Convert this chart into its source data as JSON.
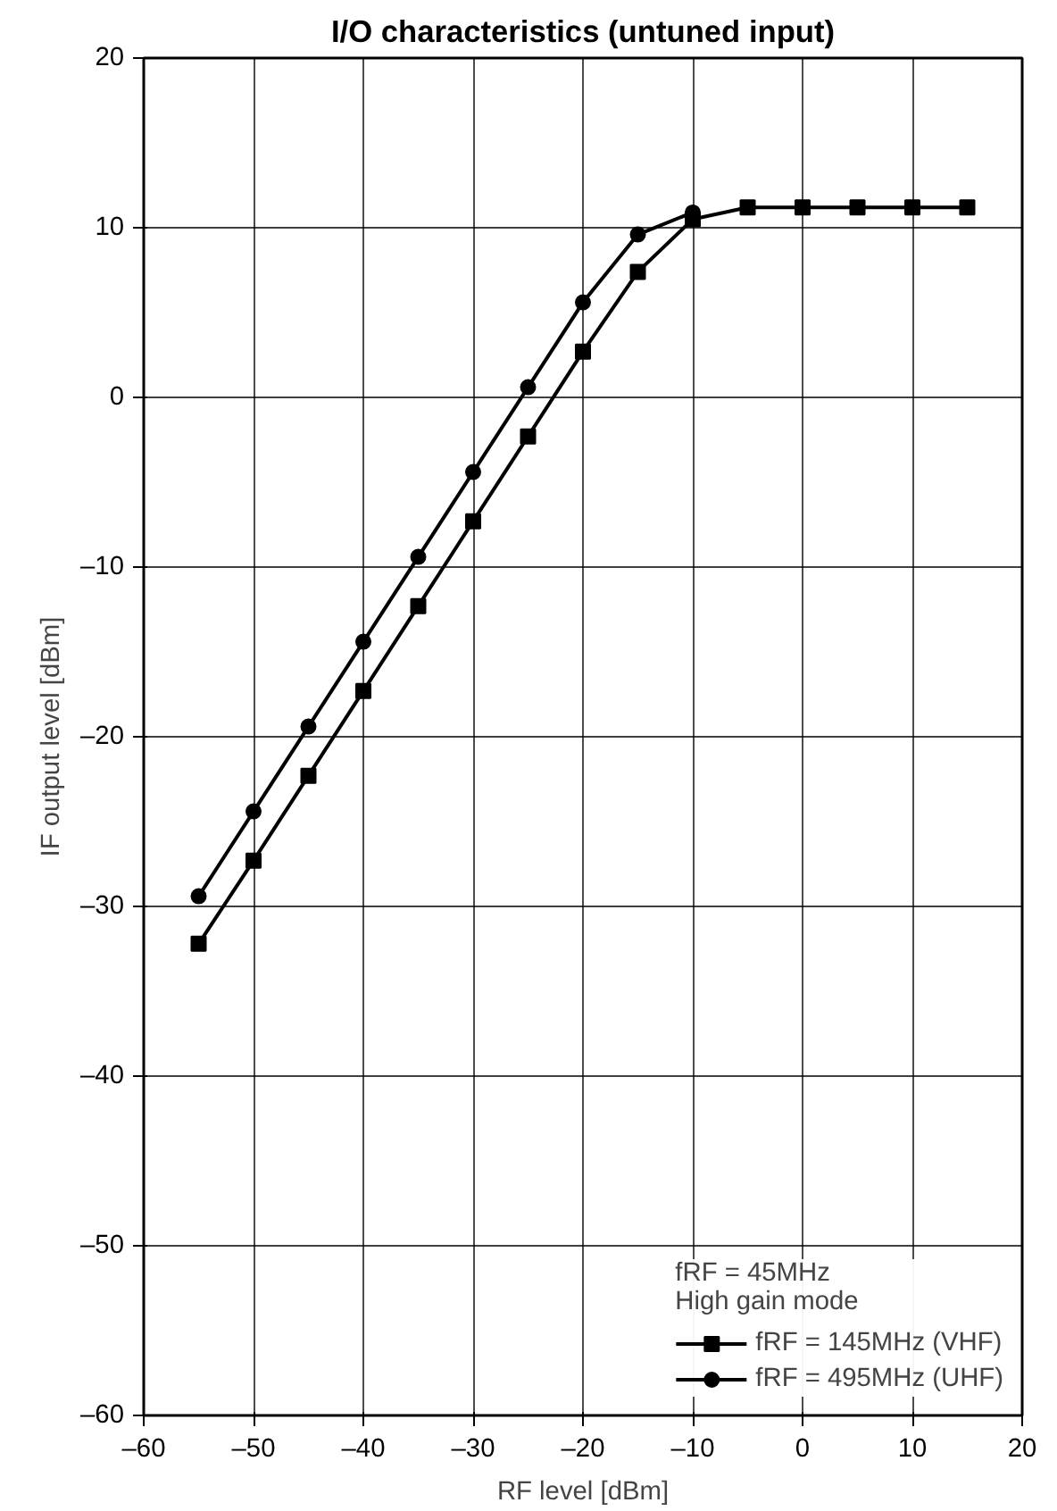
{
  "chart_data": {
    "type": "line",
    "title": "I/O characteristics (untuned input)",
    "xlabel": "RF level [dBm]",
    "ylabel": "IF output level [dBm]",
    "xlim": [
      -60,
      20
    ],
    "ylim": [
      -60,
      20
    ],
    "xticks": [
      {
        "value": -60,
        "label": "–60"
      },
      {
        "value": -50,
        "label": "–50"
      },
      {
        "value": -40,
        "label": "–40"
      },
      {
        "value": -30,
        "label": "–30"
      },
      {
        "value": -20,
        "label": "–20"
      },
      {
        "value": -10,
        "label": "–10"
      },
      0,
      10,
      20
    ],
    "yticks": [
      {
        "value": -60,
        "label": "–60"
      },
      {
        "value": -50,
        "label": "–50"
      },
      {
        "value": -40,
        "label": "–40"
      },
      {
        "value": -30,
        "label": "–30"
      },
      {
        "value": -20,
        "label": "–20"
      },
      {
        "value": -10,
        "label": "–10"
      },
      0,
      10,
      20
    ],
    "grid": true,
    "legend": "bottom right",
    "legend_title": "fRF = 45MHz\nHigh gain mode",
    "line_style": "solid",
    "series": [
      {
        "name": "fRF = 145MHz (VHF)",
        "color": "#000000",
        "marker": "square",
        "x": [
          -55,
          -50,
          -45,
          -40,
          -35,
          -30,
          -25,
          -20,
          -15,
          -10,
          -5,
          0,
          5,
          10,
          15
        ],
        "values": [
          -32.2,
          -27.3,
          -22.3,
          -17.3,
          -12.3,
          -7.3,
          -2.3,
          2.7,
          7.4,
          10.5,
          11.2,
          11.2,
          11.2,
          11.2,
          11.2
        ]
      },
      {
        "name": "fRF = 495MHz (UHF)",
        "color": "#000000",
        "marker": "circle",
        "x": [
          -55,
          -50,
          -45,
          -40,
          -35,
          -30,
          -25,
          -20,
          -15,
          -10
        ],
        "values": [
          -29.4,
          -24.4,
          -19.4,
          -14.4,
          -9.4,
          -4.4,
          0.6,
          5.6,
          9.6,
          10.9
        ]
      }
    ]
  }
}
